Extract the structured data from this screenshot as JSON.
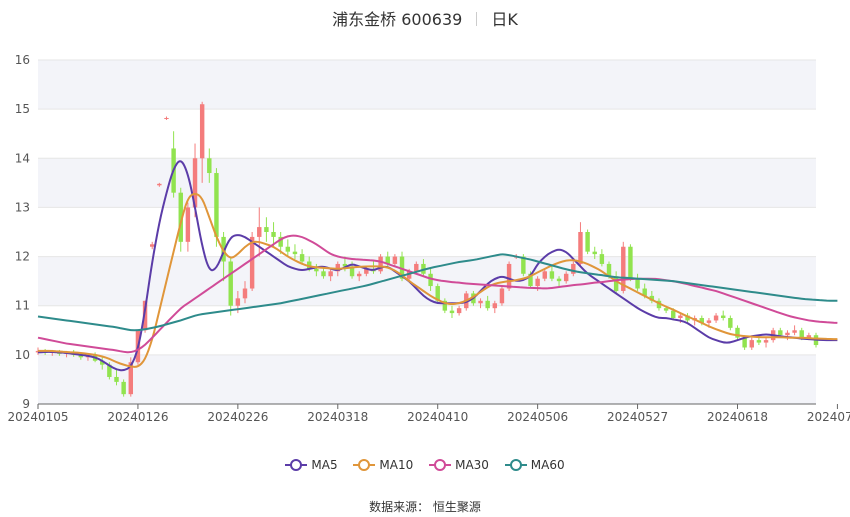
{
  "title": {
    "name": "浦东金桥 600639",
    "period": "日K"
  },
  "source": "数据来源： 恒生聚源",
  "colors": {
    "up": "#f47c7c",
    "down": "#91e34f",
    "ma5": "#5b3ca8",
    "ma10": "#e0963a",
    "ma30": "#d04b98",
    "ma60": "#2e8b8b",
    "band": "#f3f4f9",
    "grid": "#e6e6e6"
  },
  "chart_data": {
    "type": "candlestick",
    "ylim": [
      9,
      16
    ],
    "y_ticks": [
      "9",
      "10",
      "11",
      "12",
      "13",
      "14",
      "15",
      "16"
    ],
    "x_ticks": [
      "20240105",
      "20240126",
      "20240226",
      "20240318",
      "20240410",
      "20240506",
      "20240527",
      "20240618",
      "20240708"
    ],
    "x_tick_index": [
      0,
      14,
      28,
      42,
      56,
      70,
      84,
      98,
      112
    ],
    "candles_ohlc": [
      [
        10.05,
        10.15,
        10.0,
        10.08
      ],
      [
        10.08,
        10.12,
        10.0,
        10.04
      ],
      [
        10.04,
        10.1,
        9.98,
        10.06
      ],
      [
        10.06,
        10.1,
        9.98,
        10.02
      ],
      [
        10.02,
        10.08,
        9.95,
        10.05
      ],
      [
        10.05,
        10.1,
        9.96,
        10.0
      ],
      [
        10.0,
        10.05,
        9.9,
        9.95
      ],
      [
        9.95,
        10.02,
        9.88,
        10.0
      ],
      [
        10.0,
        10.05,
        9.85,
        9.88
      ],
      [
        9.88,
        9.95,
        9.7,
        9.8
      ],
      [
        9.8,
        9.85,
        9.5,
        9.55
      ],
      [
        9.55,
        9.7,
        9.38,
        9.45
      ],
      [
        9.45,
        9.5,
        9.15,
        9.2
      ],
      [
        9.2,
        9.95,
        9.15,
        9.85
      ],
      [
        9.85,
        10.5,
        9.8,
        10.5
      ],
      [
        10.5,
        11.1,
        10.45,
        11.1
      ],
      [
        12.2,
        12.3,
        12.15,
        12.25
      ],
      [
        13.45,
        13.5,
        13.42,
        13.48
      ],
      [
        14.8,
        14.85,
        14.78,
        14.82
      ],
      [
        14.2,
        14.55,
        13.2,
        13.3
      ],
      [
        13.3,
        13.4,
        12.1,
        12.3
      ],
      [
        12.3,
        13.1,
        12.1,
        13.0
      ],
      [
        13.0,
        14.3,
        12.8,
        14.0
      ],
      [
        14.0,
        15.15,
        13.5,
        15.1
      ],
      [
        14.0,
        14.2,
        13.5,
        13.7
      ],
      [
        13.7,
        13.8,
        12.2,
        12.4
      ],
      [
        12.4,
        12.5,
        11.5,
        11.9
      ],
      [
        11.9,
        12.0,
        10.8,
        11.0
      ],
      [
        11.0,
        11.3,
        10.85,
        11.15
      ],
      [
        11.15,
        11.5,
        11.05,
        11.35
      ],
      [
        11.35,
        12.5,
        11.3,
        12.4
      ],
      [
        12.4,
        13.0,
        12.0,
        12.6
      ],
      [
        12.6,
        12.8,
        12.3,
        12.5
      ],
      [
        12.5,
        12.7,
        12.2,
        12.4
      ],
      [
        12.4,
        12.5,
        12.05,
        12.2
      ],
      [
        12.2,
        12.35,
        12.0,
        12.1
      ],
      [
        12.1,
        12.25,
        11.95,
        12.05
      ],
      [
        12.05,
        12.15,
        11.85,
        11.9
      ],
      [
        11.9,
        12.0,
        11.7,
        11.75
      ],
      [
        11.75,
        11.85,
        11.6,
        11.7
      ],
      [
        11.7,
        11.8,
        11.55,
        11.6
      ],
      [
        11.6,
        11.75,
        11.5,
        11.7
      ],
      [
        11.7,
        11.9,
        11.6,
        11.85
      ],
      [
        11.85,
        12.0,
        11.7,
        11.8
      ],
      [
        11.8,
        11.9,
        11.55,
        11.6
      ],
      [
        11.6,
        11.7,
        11.5,
        11.65
      ],
      [
        11.65,
        11.8,
        11.6,
        11.75
      ],
      [
        11.75,
        11.9,
        11.65,
        11.7
      ],
      [
        11.7,
        12.05,
        11.65,
        12.0
      ],
      [
        12.0,
        12.1,
        11.8,
        11.85
      ],
      [
        11.85,
        12.05,
        11.8,
        12.0
      ],
      [
        12.0,
        12.1,
        11.5,
        11.55
      ],
      [
        11.55,
        11.75,
        11.5,
        11.7
      ],
      [
        11.7,
        11.9,
        11.65,
        11.85
      ],
      [
        11.85,
        11.95,
        11.6,
        11.65
      ],
      [
        11.65,
        11.75,
        11.3,
        11.4
      ],
      [
        11.4,
        11.45,
        11.05,
        11.1
      ],
      [
        11.1,
        11.15,
        10.85,
        10.9
      ],
      [
        10.9,
        11.0,
        10.75,
        10.85
      ],
      [
        10.85,
        11.0,
        10.8,
        10.95
      ],
      [
        10.95,
        11.3,
        10.9,
        11.25
      ],
      [
        11.25,
        11.3,
        11.0,
        11.05
      ],
      [
        11.05,
        11.15,
        10.95,
        11.1
      ],
      [
        11.1,
        11.2,
        10.9,
        10.95
      ],
      [
        10.95,
        11.1,
        10.85,
        11.05
      ],
      [
        11.05,
        11.4,
        11.0,
        11.35
      ],
      [
        11.35,
        11.9,
        11.3,
        11.85
      ],
      [
        12.0,
        12.05,
        11.95,
        12.0
      ],
      [
        12.0,
        12.05,
        11.6,
        11.65
      ],
      [
        11.65,
        11.7,
        11.35,
        11.4
      ],
      [
        11.4,
        11.6,
        11.3,
        11.55
      ],
      [
        11.55,
        11.75,
        11.5,
        11.7
      ],
      [
        11.7,
        11.8,
        11.5,
        11.55
      ],
      [
        11.55,
        11.6,
        11.4,
        11.5
      ],
      [
        11.5,
        11.7,
        11.45,
        11.65
      ],
      [
        11.65,
        11.9,
        11.6,
        11.85
      ],
      [
        11.85,
        12.7,
        11.8,
        12.5
      ],
      [
        12.5,
        12.55,
        12.05,
        12.1
      ],
      [
        12.1,
        12.2,
        11.95,
        12.05
      ],
      [
        12.05,
        12.15,
        11.8,
        11.85
      ],
      [
        11.85,
        11.9,
        11.55,
        11.6
      ],
      [
        11.6,
        11.7,
        11.25,
        11.3
      ],
      [
        11.3,
        12.3,
        11.25,
        12.2
      ],
      [
        12.2,
        12.25,
        11.5,
        11.55
      ],
      [
        11.55,
        11.65,
        11.3,
        11.35
      ],
      [
        11.35,
        11.45,
        11.15,
        11.2
      ],
      [
        11.2,
        11.3,
        11.05,
        11.1
      ],
      [
        11.1,
        11.15,
        10.9,
        10.95
      ],
      [
        10.95,
        11.0,
        10.85,
        10.9
      ],
      [
        10.9,
        10.95,
        10.7,
        10.75
      ],
      [
        10.75,
        10.85,
        10.65,
        10.8
      ],
      [
        10.8,
        10.85,
        10.65,
        10.7
      ],
      [
        10.7,
        10.8,
        10.6,
        10.75
      ],
      [
        10.75,
        10.8,
        10.6,
        10.65
      ],
      [
        10.65,
        10.75,
        10.55,
        10.7
      ],
      [
        10.7,
        10.85,
        10.65,
        10.8
      ],
      [
        10.8,
        10.9,
        10.7,
        10.75
      ],
      [
        10.75,
        10.8,
        10.5,
        10.55
      ],
      [
        10.55,
        10.6,
        10.3,
        10.35
      ],
      [
        10.35,
        10.4,
        10.1,
        10.15
      ],
      [
        10.15,
        10.35,
        10.1,
        10.3
      ],
      [
        10.3,
        10.4,
        10.2,
        10.25
      ],
      [
        10.25,
        10.35,
        10.15,
        10.3
      ],
      [
        10.3,
        10.55,
        10.25,
        10.5
      ],
      [
        10.5,
        10.55,
        10.35,
        10.4
      ],
      [
        10.4,
        10.5,
        10.3,
        10.45
      ],
      [
        10.45,
        10.6,
        10.4,
        10.5
      ],
      [
        10.5,
        10.55,
        10.3,
        10.35
      ],
      [
        10.35,
        10.45,
        10.3,
        10.4
      ],
      [
        10.4,
        10.45,
        10.15,
        10.2
      ]
    ],
    "series": [
      {
        "name": "MA5",
        "values": [
          10.05,
          10.06,
          10.06,
          10.05,
          10.04,
          10.02,
          10.0,
          9.98,
          9.95,
          9.88,
          9.78,
          9.7,
          9.68,
          9.75,
          10.1,
          10.9,
          11.9,
          12.7,
          13.3,
          13.8,
          14.0,
          13.7,
          13.0,
          12.2,
          11.7,
          11.75,
          12.1,
          12.4,
          12.45,
          12.4,
          12.3,
          12.2,
          12.1,
          12.0,
          11.9,
          11.8,
          11.75,
          11.72,
          11.75,
          11.78,
          11.8,
          11.75,
          11.72,
          11.78,
          11.85,
          11.8,
          11.75,
          11.72,
          11.78,
          11.8,
          11.7,
          11.6,
          11.5,
          11.35,
          11.2,
          11.1,
          11.05,
          11.05,
          11.05,
          11.05,
          11.07,
          11.15,
          11.3,
          11.45,
          11.55,
          11.6,
          11.55,
          11.5,
          11.52,
          11.6,
          11.85,
          12.0,
          12.1,
          12.15,
          12.1,
          11.95,
          11.8,
          11.65,
          11.55,
          11.45,
          11.35,
          11.25,
          11.15,
          11.05,
          10.95,
          10.87,
          10.8,
          10.75,
          10.75,
          10.72,
          10.7,
          10.65,
          10.55,
          10.45,
          10.35,
          10.3,
          10.25,
          10.25,
          10.3,
          10.35,
          10.38,
          10.4,
          10.42,
          10.4,
          10.38,
          10.36,
          10.35,
          10.33,
          10.32,
          10.31,
          10.3,
          10.3,
          10.3
        ]
      },
      {
        "name": "MA10",
        "values": [
          10.08,
          10.08,
          10.08,
          10.07,
          10.06,
          10.05,
          10.04,
          10.02,
          10.0,
          9.97,
          9.92,
          9.85,
          9.8,
          9.76,
          9.75,
          9.9,
          10.3,
          10.9,
          11.5,
          12.1,
          12.7,
          13.2,
          13.3,
          13.2,
          12.8,
          12.4,
          12.1,
          11.95,
          12.05,
          12.2,
          12.3,
          12.3,
          12.25,
          12.2,
          12.1,
          12.0,
          11.92,
          11.85,
          11.8,
          11.78,
          11.77,
          11.76,
          11.75,
          11.76,
          11.78,
          11.79,
          11.8,
          11.8,
          11.8,
          11.78,
          11.72,
          11.62,
          11.5,
          11.4,
          11.3,
          11.2,
          11.12,
          11.05,
          11.03,
          11.05,
          11.1,
          11.18,
          11.28,
          11.38,
          11.45,
          11.48,
          11.5,
          11.52,
          11.55,
          11.6,
          11.68,
          11.75,
          11.82,
          11.88,
          11.92,
          11.93,
          11.9,
          11.85,
          11.78,
          11.7,
          11.6,
          11.5,
          11.42,
          11.35,
          11.27,
          11.2,
          11.12,
          11.05,
          10.98,
          10.92,
          10.85,
          10.78,
          10.72,
          10.65,
          10.58,
          10.52,
          10.47,
          10.42,
          10.4,
          10.38,
          10.37,
          10.36,
          10.36,
          10.36,
          10.36,
          10.35,
          10.35,
          10.35,
          10.34,
          10.33,
          10.33,
          10.32,
          10.32
        ]
      },
      {
        "name": "MA30",
        "values": [
          10.35,
          10.32,
          10.29,
          10.26,
          10.23,
          10.21,
          10.19,
          10.17,
          10.15,
          10.13,
          10.11,
          10.09,
          10.06,
          10.05,
          10.1,
          10.2,
          10.35,
          10.5,
          10.65,
          10.8,
          10.95,
          11.05,
          11.15,
          11.25,
          11.35,
          11.45,
          11.55,
          11.65,
          11.75,
          11.85,
          11.95,
          12.05,
          12.15,
          12.25,
          12.35,
          12.42,
          12.43,
          12.4,
          12.33,
          12.25,
          12.15,
          12.05,
          12.0,
          11.97,
          11.95,
          11.94,
          11.93,
          11.92,
          11.9,
          11.85,
          11.8,
          11.75,
          11.7,
          11.65,
          11.6,
          11.55,
          11.52,
          11.5,
          11.48,
          11.47,
          11.45,
          11.44,
          11.43,
          11.42,
          11.41,
          11.4,
          11.39,
          11.38,
          11.37,
          11.36,
          11.36,
          11.35,
          11.36,
          11.38,
          11.4,
          11.42,
          11.43,
          11.45,
          11.47,
          11.48,
          11.5,
          11.52,
          11.53,
          11.54,
          11.55,
          11.55,
          11.55,
          11.54,
          11.52,
          11.5,
          11.47,
          11.44,
          11.4,
          11.37,
          11.33,
          11.3,
          11.25,
          11.2,
          11.15,
          11.1,
          11.05,
          11.0,
          10.95,
          10.9,
          10.85,
          10.8,
          10.76,
          10.73,
          10.7,
          10.68,
          10.67,
          10.66,
          10.65
        ]
      },
      {
        "name": "MA60",
        "values": [
          10.78,
          10.76,
          10.74,
          10.72,
          10.7,
          10.68,
          10.66,
          10.64,
          10.62,
          10.6,
          10.58,
          10.56,
          10.53,
          10.5,
          10.5,
          10.52,
          10.55,
          10.58,
          10.62,
          10.66,
          10.7,
          10.75,
          10.8,
          10.83,
          10.85,
          10.87,
          10.89,
          10.91,
          10.93,
          10.95,
          10.97,
          10.99,
          11.01,
          11.03,
          11.05,
          11.08,
          11.11,
          11.14,
          11.17,
          11.2,
          11.23,
          11.26,
          11.29,
          11.32,
          11.35,
          11.38,
          11.41,
          11.45,
          11.49,
          11.53,
          11.57,
          11.61,
          11.65,
          11.69,
          11.73,
          11.77,
          11.8,
          11.83,
          11.86,
          11.89,
          11.91,
          11.93,
          11.96,
          11.99,
          12.02,
          12.05,
          12.03,
          12.0,
          11.97,
          11.94,
          11.9,
          11.86,
          11.82,
          11.78,
          11.74,
          11.71,
          11.68,
          11.66,
          11.64,
          11.62,
          11.6,
          11.58,
          11.57,
          11.56,
          11.55,
          11.54,
          11.53,
          11.52,
          11.51,
          11.5,
          11.48,
          11.46,
          11.44,
          11.42,
          11.4,
          11.38,
          11.36,
          11.34,
          11.32,
          11.3,
          11.28,
          11.26,
          11.24,
          11.22,
          11.2,
          11.18,
          11.16,
          11.14,
          11.13,
          11.12,
          11.11,
          11.1,
          11.1
        ]
      }
    ],
    "legend": [
      "MA5",
      "MA10",
      "MA30",
      "MA60"
    ],
    "legend_position": "bottom"
  }
}
